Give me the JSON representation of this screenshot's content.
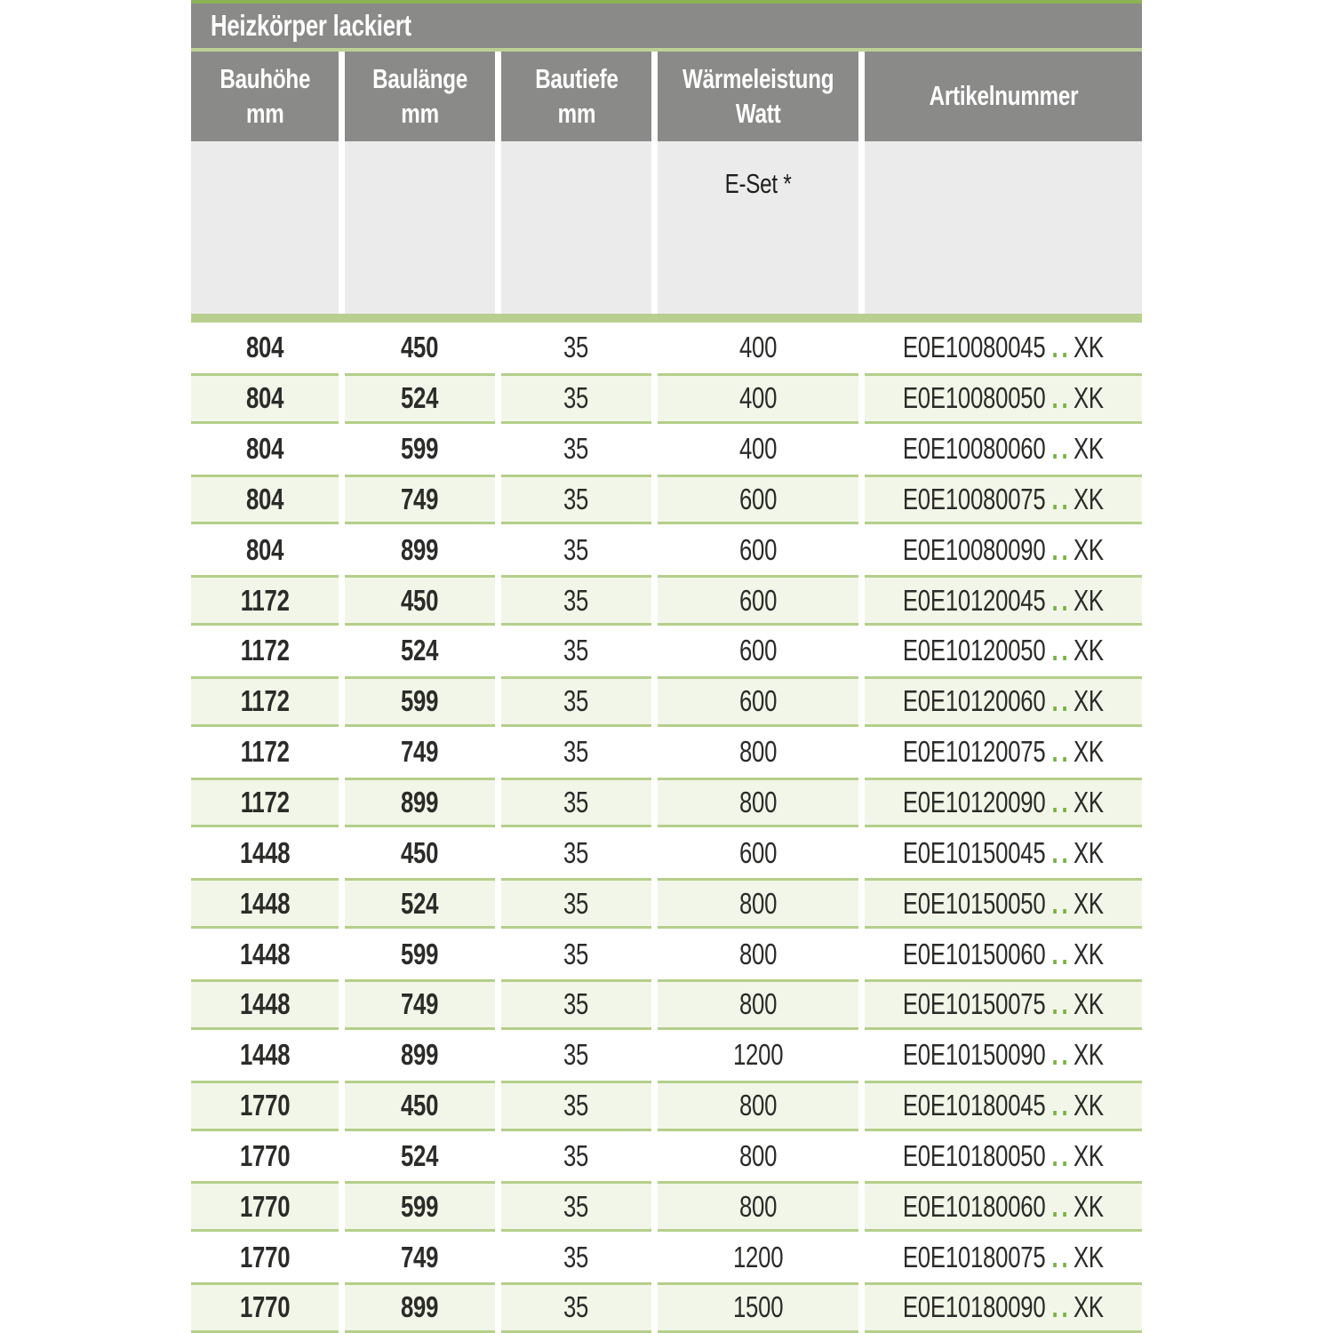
{
  "colors": {
    "top_line_green": "#8cb356",
    "title_underline_green": "#bdd095",
    "header_grey": "#8a8a89",
    "subheader_grey": "#ebebeb",
    "divider_green": "#b9cf8f",
    "row_alt_bg": "#f2f6e8",
    "row_border_green": "#b4cf8a",
    "dots_green": "#76b344",
    "text_dark": "#2b2b29"
  },
  "table": {
    "title": "Heizkörper lackiert",
    "columns": [
      {
        "line1": "Bauhöhe",
        "line2": "mm"
      },
      {
        "line1": "Baulänge",
        "line2": "mm"
      },
      {
        "line1": "Bautiefe",
        "line2": "mm"
      },
      {
        "line1": "Wärmeleistung",
        "line2": "Watt"
      },
      {
        "line1": "Artikelnummer",
        "line2": ""
      }
    ],
    "subheader": {
      "eset_label": "E-Set *"
    },
    "rows": [
      {
        "bauhoehe": "804",
        "baulaenge": "450",
        "bautiefe": "35",
        "watt": "400",
        "artikel_code": "E0E10080045",
        "artikel_dots": "..",
        "artikel_suffix": "XK"
      },
      {
        "bauhoehe": "804",
        "baulaenge": "524",
        "bautiefe": "35",
        "watt": "400",
        "artikel_code": "E0E10080050",
        "artikel_dots": "..",
        "artikel_suffix": "XK"
      },
      {
        "bauhoehe": "804",
        "baulaenge": "599",
        "bautiefe": "35",
        "watt": "400",
        "artikel_code": "E0E10080060",
        "artikel_dots": "..",
        "artikel_suffix": "XK"
      },
      {
        "bauhoehe": "804",
        "baulaenge": "749",
        "bautiefe": "35",
        "watt": "600",
        "artikel_code": "E0E10080075",
        "artikel_dots": "..",
        "artikel_suffix": "XK"
      },
      {
        "bauhoehe": "804",
        "baulaenge": "899",
        "bautiefe": "35",
        "watt": "600",
        "artikel_code": "E0E10080090",
        "artikel_dots": "..",
        "artikel_suffix": "XK"
      },
      {
        "bauhoehe": "1172",
        "baulaenge": "450",
        "bautiefe": "35",
        "watt": "600",
        "artikel_code": "E0E10120045",
        "artikel_dots": "..",
        "artikel_suffix": "XK"
      },
      {
        "bauhoehe": "1172",
        "baulaenge": "524",
        "bautiefe": "35",
        "watt": "600",
        "artikel_code": "E0E10120050",
        "artikel_dots": "..",
        "artikel_suffix": "XK"
      },
      {
        "bauhoehe": "1172",
        "baulaenge": "599",
        "bautiefe": "35",
        "watt": "600",
        "artikel_code": "E0E10120060",
        "artikel_dots": "..",
        "artikel_suffix": "XK"
      },
      {
        "bauhoehe": "1172",
        "baulaenge": "749",
        "bautiefe": "35",
        "watt": "800",
        "artikel_code": "E0E10120075",
        "artikel_dots": "..",
        "artikel_suffix": "XK"
      },
      {
        "bauhoehe": "1172",
        "baulaenge": "899",
        "bautiefe": "35",
        "watt": "800",
        "artikel_code": "E0E10120090",
        "artikel_dots": "..",
        "artikel_suffix": "XK"
      },
      {
        "bauhoehe": "1448",
        "baulaenge": "450",
        "bautiefe": "35",
        "watt": "600",
        "artikel_code": "E0E10150045",
        "artikel_dots": "..",
        "artikel_suffix": "XK"
      },
      {
        "bauhoehe": "1448",
        "baulaenge": "524",
        "bautiefe": "35",
        "watt": "800",
        "artikel_code": "E0E10150050",
        "artikel_dots": "..",
        "artikel_suffix": "XK"
      },
      {
        "bauhoehe": "1448",
        "baulaenge": "599",
        "bautiefe": "35",
        "watt": "800",
        "artikel_code": "E0E10150060",
        "artikel_dots": "..",
        "artikel_suffix": "XK"
      },
      {
        "bauhoehe": "1448",
        "baulaenge": "749",
        "bautiefe": "35",
        "watt": "800",
        "artikel_code": "E0E10150075",
        "artikel_dots": "..",
        "artikel_suffix": "XK"
      },
      {
        "bauhoehe": "1448",
        "baulaenge": "899",
        "bautiefe": "35",
        "watt": "1200",
        "artikel_code": "E0E10150090",
        "artikel_dots": "..",
        "artikel_suffix": "XK"
      },
      {
        "bauhoehe": "1770",
        "baulaenge": "450",
        "bautiefe": "35",
        "watt": "800",
        "artikel_code": "E0E10180045",
        "artikel_dots": "..",
        "artikel_suffix": "XK"
      },
      {
        "bauhoehe": "1770",
        "baulaenge": "524",
        "bautiefe": "35",
        "watt": "800",
        "artikel_code": "E0E10180050",
        "artikel_dots": "..",
        "artikel_suffix": "XK"
      },
      {
        "bauhoehe": "1770",
        "baulaenge": "599",
        "bautiefe": "35",
        "watt": "800",
        "artikel_code": "E0E10180060",
        "artikel_dots": "..",
        "artikel_suffix": "XK"
      },
      {
        "bauhoehe": "1770",
        "baulaenge": "749",
        "bautiefe": "35",
        "watt": "1200",
        "artikel_code": "E0E10180075",
        "artikel_dots": "..",
        "artikel_suffix": "XK"
      },
      {
        "bauhoehe": "1770",
        "baulaenge": "899",
        "bautiefe": "35",
        "watt": "1500",
        "artikel_code": "E0E10180090",
        "artikel_dots": "..",
        "artikel_suffix": "XK"
      }
    ]
  }
}
